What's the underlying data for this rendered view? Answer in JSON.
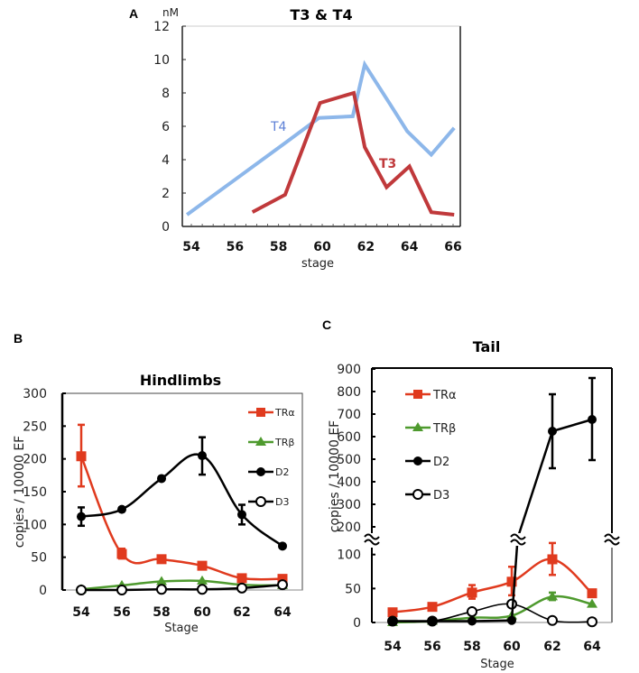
{
  "chart_data": [
    {
      "panel": "A",
      "type": "line",
      "title": "T3 & T4",
      "xlabel": "stage",
      "ylabel": "nM",
      "xlim": [
        53.6,
        66.4
      ],
      "ylim": [
        0,
        12
      ],
      "xticks": [
        "54",
        "56",
        "58",
        "60",
        "62",
        "64",
        "66"
      ],
      "yticks": [
        "0",
        "2",
        "4",
        "6",
        "8",
        "10",
        "12"
      ],
      "grid": false,
      "series": [
        {
          "name": "T4",
          "color": "#8db7ea",
          "label_color": "#5b7fd6",
          "x": [
            53.8,
            58.3,
            59.85,
            61.4,
            61.95,
            63.1,
            63.9,
            65.0,
            66.05
          ],
          "y": [
            0.7,
            5.0,
            6.5,
            6.6,
            9.7,
            7.35,
            5.7,
            4.3,
            5.9
          ]
        },
        {
          "name": "T3",
          "color": "#c0393b",
          "label_color": "#c0393b",
          "x": [
            56.8,
            58.3,
            59.9,
            61.45,
            61.95,
            62.95,
            64.0,
            65.0,
            66.05
          ],
          "y": [
            0.86,
            1.9,
            7.4,
            8.0,
            4.75,
            2.35,
            3.6,
            0.85,
            0.7
          ]
        }
      ]
    },
    {
      "panel": "B",
      "type": "line",
      "title": "Hindlimbs",
      "xlabel": "Stage",
      "ylabel": "copies / 10000 EF",
      "ylim": [
        0,
        300
      ],
      "xticks": [
        "54",
        "56",
        "58",
        "60",
        "62",
        "64"
      ],
      "yticks": [
        "0",
        "50",
        "100",
        "150",
        "200",
        "250",
        "300"
      ],
      "x": [
        54,
        56,
        58,
        60,
        62,
        64
      ],
      "legend_position": "top-right",
      "series": [
        {
          "name": "TRα",
          "color": "#e03a1e",
          "marker": "square",
          "values": [
            204,
            55,
            47,
            37,
            18,
            17
          ],
          "err_low": [
            158,
            48,
            null,
            null,
            null,
            null
          ],
          "err_high": [
            252,
            63,
            null,
            null,
            null,
            null
          ]
        },
        {
          "name": "TRβ",
          "color": "#4e9a2e",
          "marker": "triangle",
          "values": [
            1,
            7,
            13,
            14,
            8,
            7
          ],
          "err_low": [
            null,
            null,
            null,
            null,
            null,
            null
          ],
          "err_high": [
            null,
            null,
            null,
            null,
            null,
            null
          ]
        },
        {
          "name": "D2",
          "color": "#000000",
          "marker": "filled-circle",
          "values": [
            112,
            123,
            170,
            205,
            115,
            67
          ],
          "err_low": [
            98,
            null,
            null,
            176,
            100,
            null
          ],
          "err_high": [
            126,
            null,
            null,
            233,
            130,
            null
          ]
        },
        {
          "name": "D3",
          "color": "#000000",
          "marker": "open-circle",
          "values": [
            0,
            0,
            1,
            1,
            3,
            8
          ],
          "err_low": [
            null,
            null,
            null,
            null,
            null,
            null
          ],
          "err_high": [
            null,
            null,
            null,
            null,
            null,
            null
          ]
        }
      ]
    },
    {
      "panel": "C",
      "type": "line",
      "title": "Tail",
      "xlabel": "Stage",
      "ylabel": "copies / 10000 EF",
      "ylim_lower": [
        0,
        117
      ],
      "ylim_upper": [
        200,
        900
      ],
      "axis_break": true,
      "xticks": [
        "54",
        "56",
        "58",
        "60",
        "62",
        "64"
      ],
      "yticks_lower": [
        "0",
        "50",
        "100"
      ],
      "yticks_upper": [
        "200",
        "300",
        "400",
        "500",
        "600",
        "700",
        "800",
        "900"
      ],
      "x": [
        54,
        56,
        58,
        60,
        62,
        64
      ],
      "legend_position": "top-left",
      "series": [
        {
          "name": "TRα",
          "color": "#e03a1e",
          "marker": "square",
          "values": [
            15,
            23,
            44,
            60,
            93,
            43
          ],
          "err_low": [
            null,
            null,
            35,
            40,
            70,
            null
          ],
          "err_high": [
            null,
            null,
            55,
            82,
            117,
            null
          ]
        },
        {
          "name": "TRβ",
          "color": "#4e9a2e",
          "marker": "triangle",
          "values": [
            0,
            2,
            7,
            10,
            38,
            27
          ],
          "err_low": [
            null,
            null,
            null,
            null,
            33,
            null
          ],
          "err_high": [
            null,
            null,
            null,
            null,
            44,
            null
          ]
        },
        {
          "name": "D2",
          "color": "#000000",
          "marker": "filled-circle",
          "values": [
            2,
            2,
            2,
            3,
            624,
            676
          ],
          "err_low": [
            null,
            null,
            null,
            null,
            460,
            496
          ],
          "err_high": [
            null,
            null,
            null,
            null,
            788,
            860
          ]
        },
        {
          "name": "D3",
          "color": "#000000",
          "marker": "open-circle",
          "values": [
            2,
            2,
            16,
            27,
            3,
            1
          ],
          "err_low": [
            null,
            null,
            null,
            null,
            null,
            null
          ],
          "err_high": [
            null,
            null,
            null,
            null,
            null,
            null
          ]
        }
      ]
    }
  ],
  "panel_labels": [
    "A",
    "B",
    "C"
  ]
}
